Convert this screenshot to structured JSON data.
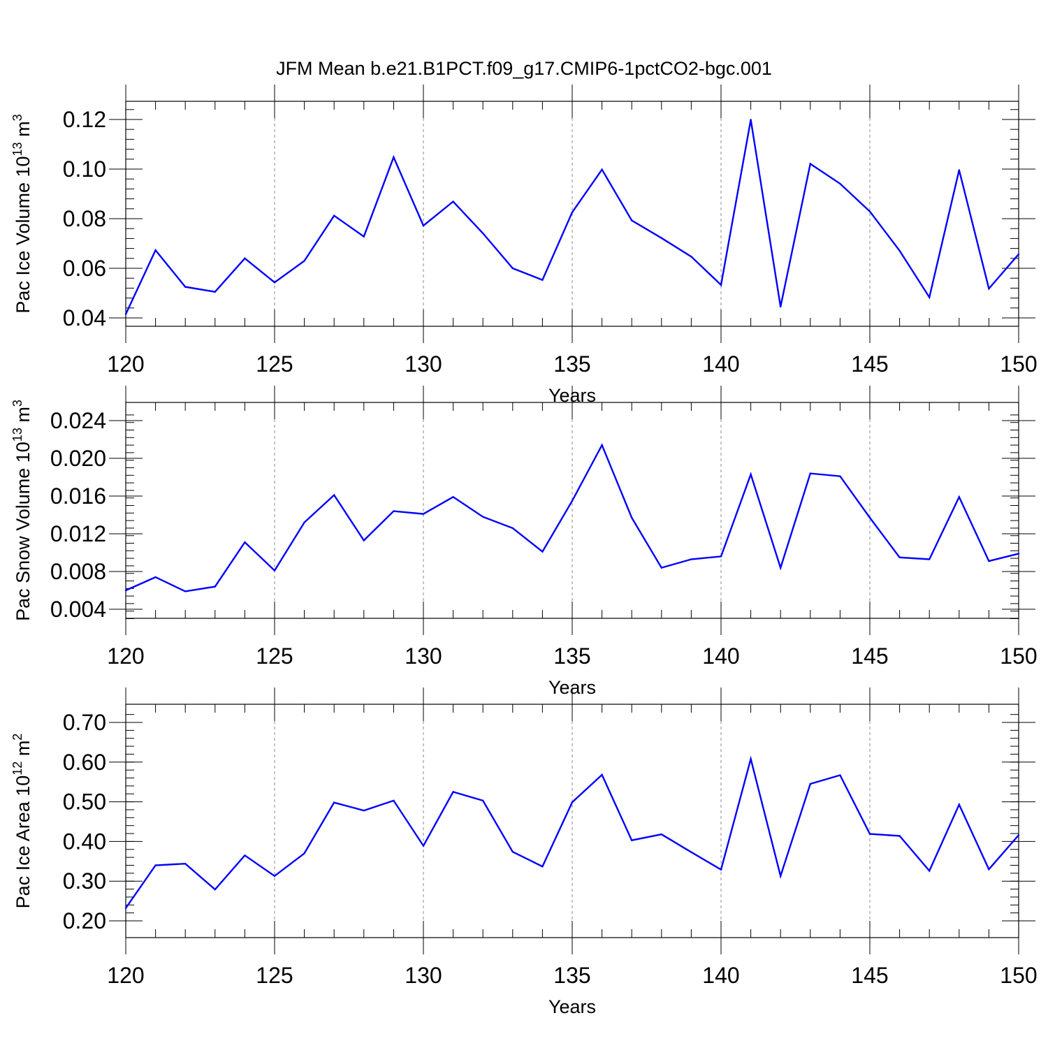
{
  "title": "JFM Mean b.e21.B1PCT.f09_g17.CMIP6-1pctCO2-bgc.001",
  "line_color": "#0000ff",
  "chart_data": [
    {
      "type": "line",
      "xlabel": "Years",
      "ylabel": "Pac Ice Volume 10",
      "ylabel_sup": "13",
      "ylabel_unit": "m",
      "ylabel_unit_sup": "3",
      "xlim": [
        120,
        150
      ],
      "ylim": [
        0.04,
        0.12
      ],
      "xticks": [
        "120",
        "125",
        "130",
        "135",
        "140",
        "145",
        "150"
      ],
      "yticks": [
        "0.04",
        "0.06",
        "0.08",
        "0.10",
        "0.12"
      ],
      "grid": "vertical dashed",
      "x": [
        120,
        121,
        122,
        123,
        124,
        125,
        126,
        127,
        128,
        129,
        130,
        131,
        132,
        133,
        134,
        135,
        136,
        137,
        138,
        139,
        140,
        141,
        142,
        143,
        144,
        145,
        146,
        147,
        148,
        149,
        150
      ],
      "values": [
        0.0415,
        0.0673,
        0.0525,
        0.0505,
        0.064,
        0.0543,
        0.063,
        0.0812,
        0.0728,
        0.1048,
        0.0772,
        0.0869,
        0.0741,
        0.06,
        0.0553,
        0.0826,
        0.0998,
        0.0793,
        0.0722,
        0.0647,
        0.0533,
        0.1199,
        0.0445,
        0.1021,
        0.0941,
        0.0829,
        0.0671,
        0.0483,
        0.0996,
        0.0518,
        0.0657
      ]
    },
    {
      "type": "line",
      "xlabel": "Years",
      "ylabel": "Pac Snow Volume 10",
      "ylabel_sup": "13",
      "ylabel_unit": "m",
      "ylabel_unit_sup": "3",
      "xlim": [
        120,
        150
      ],
      "ylim": [
        0.003,
        0.024
      ],
      "xticks": [
        "120",
        "125",
        "130",
        "135",
        "140",
        "145",
        "150"
      ],
      "yticks": [
        "0.004",
        "0.008",
        "0.012",
        "0.016",
        "0.020",
        "0.024"
      ],
      "grid": "vertical dashed",
      "x": [
        120,
        121,
        122,
        123,
        124,
        125,
        126,
        127,
        128,
        129,
        130,
        131,
        132,
        133,
        134,
        135,
        136,
        137,
        138,
        139,
        140,
        141,
        142,
        143,
        144,
        145,
        146,
        147,
        148,
        149,
        150
      ],
      "values": [
        0.006,
        0.0074,
        0.0059,
        0.0064,
        0.0111,
        0.0081,
        0.0132,
        0.0161,
        0.0113,
        0.0144,
        0.0141,
        0.0159,
        0.0138,
        0.0126,
        0.0101,
        0.0155,
        0.0214,
        0.0137,
        0.0084,
        0.0093,
        0.0096,
        0.0183,
        0.0084,
        0.0184,
        0.0181,
        0.0137,
        0.0095,
        0.0093,
        0.0159,
        0.0091,
        0.0099
      ]
    },
    {
      "type": "line",
      "xlabel": "Years",
      "ylabel": "Pac Ice Area 10",
      "ylabel_sup": "12",
      "ylabel_unit": "m",
      "ylabel_unit_sup": "2",
      "xlim": [
        120,
        150
      ],
      "ylim": [
        0.2,
        0.7
      ],
      "xticks": [
        "120",
        "125",
        "130",
        "135",
        "140",
        "145",
        "150"
      ],
      "yticks": [
        "0.20",
        "0.30",
        "0.40",
        "0.50",
        "0.60",
        "0.70"
      ],
      "grid": "vertical dashed",
      "x": [
        120,
        121,
        122,
        123,
        124,
        125,
        126,
        127,
        128,
        129,
        130,
        131,
        132,
        133,
        134,
        135,
        136,
        137,
        138,
        139,
        140,
        141,
        142,
        143,
        144,
        145,
        146,
        147,
        148,
        149,
        150
      ],
      "values": [
        0.232,
        0.34,
        0.344,
        0.279,
        0.365,
        0.313,
        0.37,
        0.498,
        0.478,
        0.503,
        0.389,
        0.525,
        0.503,
        0.374,
        0.337,
        0.499,
        0.568,
        0.403,
        0.418,
        0.373,
        0.329,
        0.608,
        0.313,
        0.545,
        0.567,
        0.419,
        0.414,
        0.326,
        0.493,
        0.33,
        0.416
      ]
    }
  ]
}
